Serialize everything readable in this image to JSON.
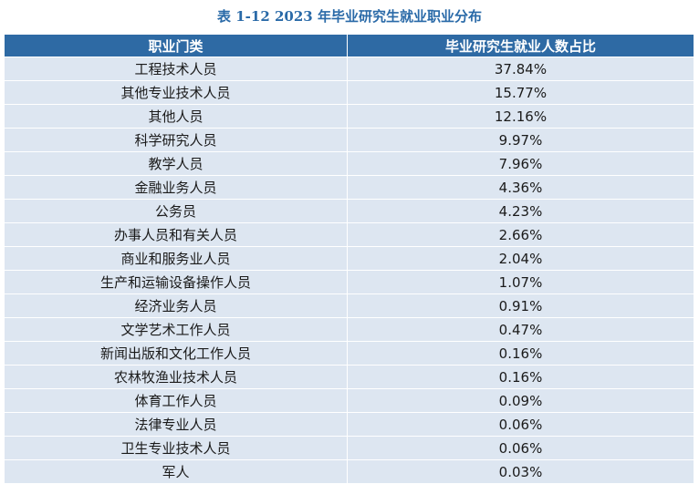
{
  "caption": "表 1-12 2023 年毕业研究生就业职业分布",
  "headers": [
    "职业门类",
    "毕业研究生就业人数占比"
  ],
  "rows": [
    {
      "category": "工程技术人员",
      "share": "37.84%"
    },
    {
      "category": "其他专业技术人员",
      "share": "15.77%"
    },
    {
      "category": "其他人员",
      "share": "12.16%"
    },
    {
      "category": "科学研究人员",
      "share": "9.97%"
    },
    {
      "category": "教学人员",
      "share": "7.96%"
    },
    {
      "category": "金融业务人员",
      "share": "4.36%"
    },
    {
      "category": "公务员",
      "share": "4.23%"
    },
    {
      "category": "办事人员和有关人员",
      "share": "2.66%"
    },
    {
      "category": "商业和服务业人员",
      "share": "2.04%"
    },
    {
      "category": "生产和运输设备操作人员",
      "share": "1.07%"
    },
    {
      "category": "经济业务人员",
      "share": "0.91%"
    },
    {
      "category": "文学艺术工作人员",
      "share": "0.47%"
    },
    {
      "category": "新闻出版和文化工作人员",
      "share": "0.16%"
    },
    {
      "category": "农林牧渔业技术人员",
      "share": "0.16%"
    },
    {
      "category": "体育工作人员",
      "share": "0.09%"
    },
    {
      "category": "法律专业人员",
      "share": "0.06%"
    },
    {
      "category": "卫生专业技术人员",
      "share": "0.06%"
    },
    {
      "category": "军人",
      "share": "0.03%"
    }
  ]
}
